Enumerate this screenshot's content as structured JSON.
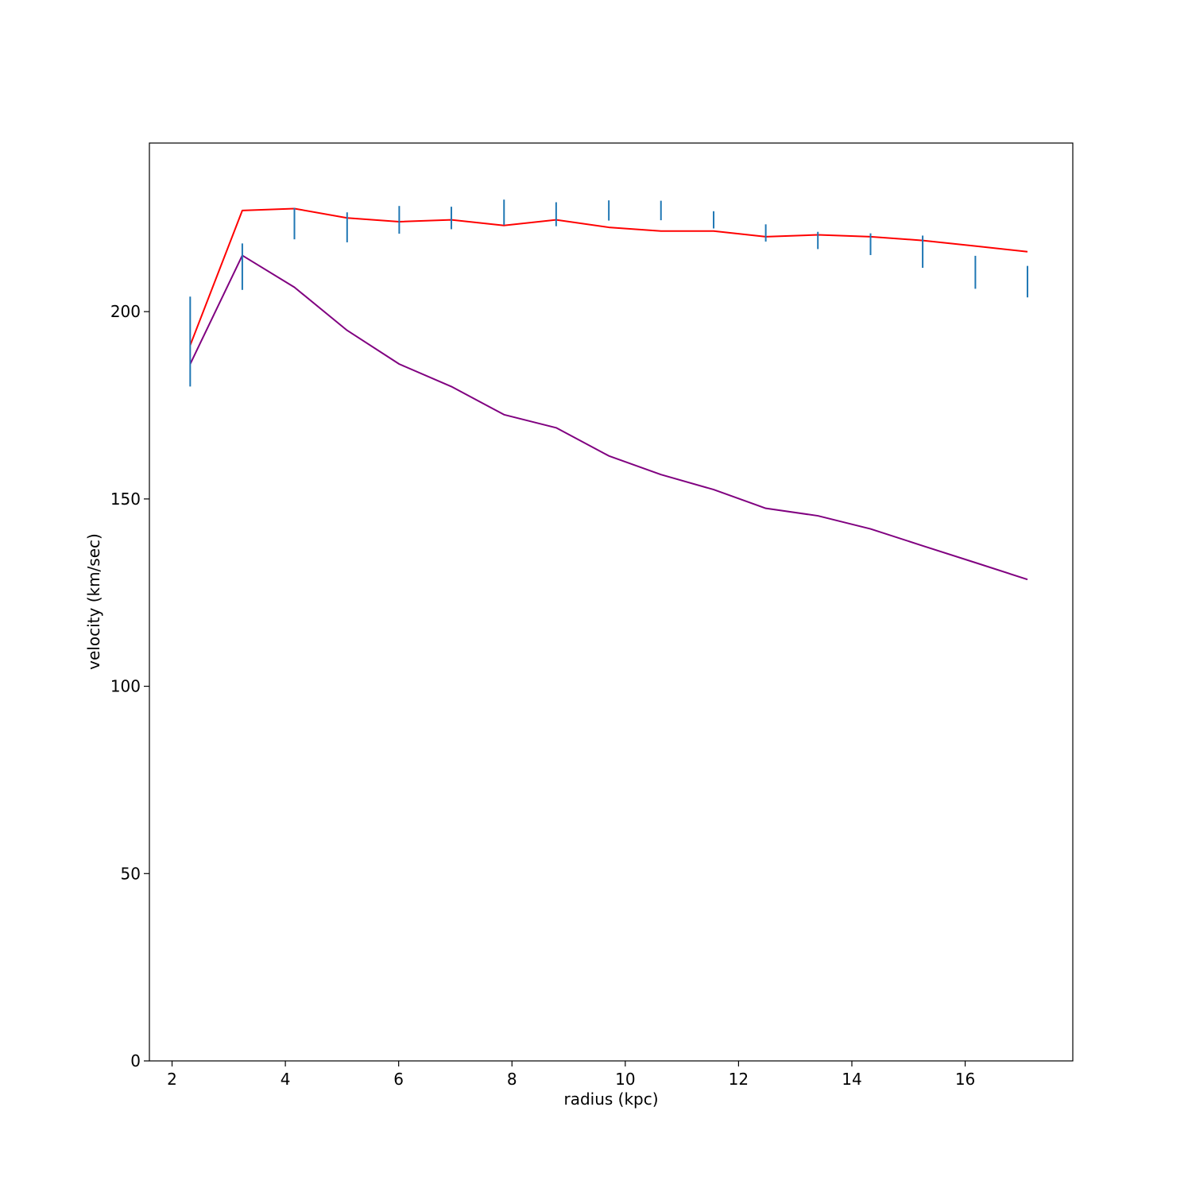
{
  "chart_data": {
    "type": "line",
    "xlabel": "radius (kpc)",
    "ylabel": "velocity (km/sec)",
    "xlim": [
      1.6,
      17.9
    ],
    "ylim": [
      0,
      245
    ],
    "xticks": [
      2,
      4,
      6,
      8,
      10,
      12,
      14,
      16
    ],
    "yticks": [
      0,
      50,
      100,
      150,
      200
    ],
    "grid": false,
    "legend": "none",
    "series": [
      {
        "kind": "line",
        "color": "#ff0000",
        "x": [
          2.32,
          3.24,
          4.16,
          5.09,
          6.01,
          6.93,
          7.86,
          8.78,
          9.71,
          10.63,
          11.56,
          12.48,
          13.4,
          14.33,
          15.25,
          16.18,
          17.1
        ],
        "y": [
          191.0,
          227.0,
          227.5,
          225.0,
          224.0,
          224.5,
          223.0,
          224.5,
          222.5,
          221.5,
          221.5,
          220.0,
          220.5,
          220.0,
          219.0,
          217.5,
          216.0
        ]
      },
      {
        "kind": "line",
        "color": "#800080",
        "x": [
          2.32,
          3.24,
          4.16,
          5.09,
          6.01,
          6.93,
          7.86,
          8.78,
          9.71,
          10.63,
          11.56,
          12.48,
          13.4,
          14.33,
          15.25,
          16.18,
          17.1
        ],
        "y": [
          186.0,
          215.0,
          206.5,
          195.0,
          186.0,
          180.0,
          172.5,
          169.0,
          161.5,
          156.5,
          152.5,
          147.5,
          145.5,
          142.0,
          137.5,
          133.0,
          128.5
        ]
      },
      {
        "kind": "errorbar",
        "color": "#1f77b4",
        "x": [
          2.32,
          3.24,
          4.16,
          5.09,
          6.01,
          6.93,
          7.86,
          8.78,
          9.71,
          10.63,
          11.56,
          12.48,
          13.4,
          14.33,
          15.25,
          16.18,
          17.1
        ],
        "y": [
          192.0,
          212.0,
          223.5,
          222.5,
          224.5,
          225.0,
          226.5,
          226.0,
          227.0,
          227.0,
          224.5,
          221.0,
          219.0,
          218.0,
          216.0,
          210.5,
          208.0
        ],
        "yerr": [
          12.0,
          6.2,
          4.2,
          4.0,
          3.7,
          3.0,
          3.4,
          3.2,
          2.7,
          2.6,
          2.3,
          2.3,
          2.3,
          2.9,
          4.3,
          4.4,
          4.2
        ]
      }
    ]
  }
}
